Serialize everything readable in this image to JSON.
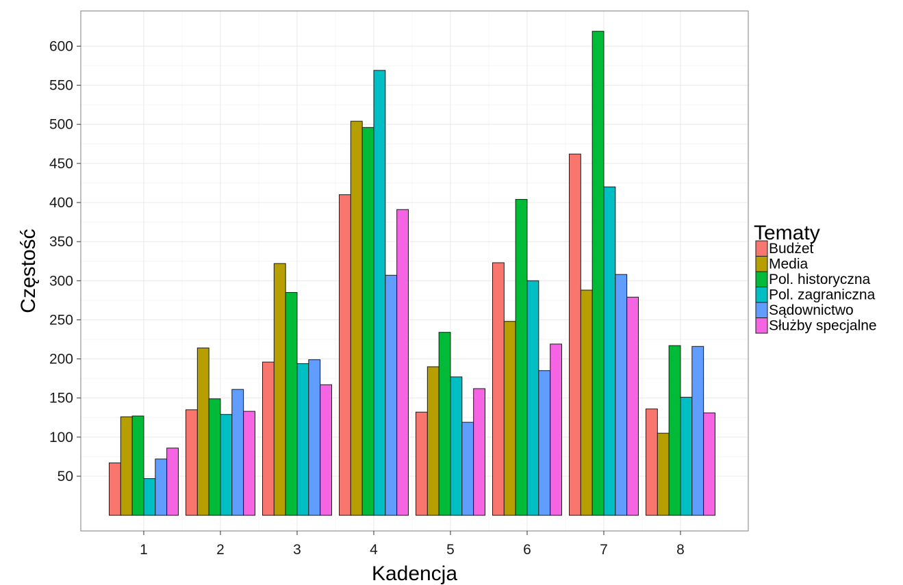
{
  "chart_data": {
    "type": "bar",
    "xlabel": "Kadencja",
    "ylabel": "Częstość",
    "categories": [
      "1",
      "2",
      "3",
      "4",
      "5",
      "6",
      "7",
      "8"
    ],
    "ylim": [
      -20,
      645
    ],
    "yticks": [
      50,
      100,
      150,
      200,
      250,
      300,
      350,
      400,
      450,
      500,
      550,
      600
    ],
    "grid": true,
    "legend": {
      "title": "Tematy",
      "placement": "right"
    },
    "series": [
      {
        "name": "Budżet",
        "color": "#F8766D",
        "values": [
          67,
          135,
          196,
          410,
          132,
          323,
          462,
          136
        ]
      },
      {
        "name": "Media",
        "color": "#B79F00",
        "values": [
          126,
          214,
          322,
          504,
          190,
          248,
          288,
          105
        ]
      },
      {
        "name": "Pol. historyczna",
        "color": "#00BA38",
        "values": [
          127,
          149,
          285,
          496,
          234,
          404,
          619,
          217
        ]
      },
      {
        "name": "Pol. zagraniczna",
        "color": "#00BFC4",
        "values": [
          47,
          129,
          194,
          569,
          177,
          300,
          420,
          151
        ]
      },
      {
        "name": "Sądownictwo",
        "color": "#619CFF",
        "values": [
          72,
          161,
          199,
          307,
          119,
          185,
          308,
          216
        ]
      },
      {
        "name": "Służby specjalne",
        "color": "#F564E3",
        "values": [
          86,
          133,
          167,
          391,
          162,
          219,
          279,
          131
        ]
      }
    ]
  }
}
